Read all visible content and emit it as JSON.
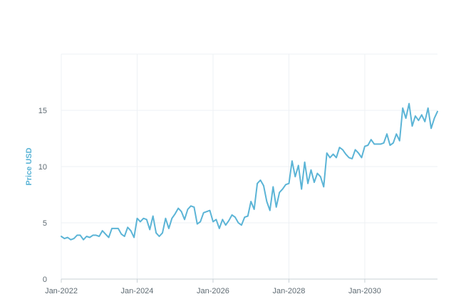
{
  "chart_data": {
    "type": "line",
    "title": "",
    "xlabel": "",
    "ylabel": "Price USD",
    "xlim": [
      "2022-01",
      "2031-12"
    ],
    "ylim": [
      0,
      20
    ],
    "grid": true,
    "colors": {
      "series": "#5bb4d6",
      "ylabel": "#5bb4d6",
      "grid": "#eef1f4",
      "axis": "#c8d0d6"
    },
    "x_ticks": [
      "Jan-2022",
      "Jan-2024",
      "Jan-2026",
      "Jan-2028",
      "Jan-2030"
    ],
    "y_ticks": [
      "0",
      "5",
      "10",
      "15"
    ],
    "series": [
      {
        "x": [
          "2022-01",
          "2022-02",
          "2022-03",
          "2022-04",
          "2022-05",
          "2022-06",
          "2022-07",
          "2022-08",
          "2022-09",
          "2022-10",
          "2022-11",
          "2022-12",
          "2023-01",
          "2023-02",
          "2023-03",
          "2023-04",
          "2023-05",
          "2023-06",
          "2023-07",
          "2023-08",
          "2023-09",
          "2023-10",
          "2023-11",
          "2023-12",
          "2024-01",
          "2024-02",
          "2024-03",
          "2024-04",
          "2024-05",
          "2024-06",
          "2024-07",
          "2024-08",
          "2024-09",
          "2024-10",
          "2024-11",
          "2024-12",
          "2025-01",
          "2025-02",
          "2025-03",
          "2025-04",
          "2025-05",
          "2025-06",
          "2025-07",
          "2025-08",
          "2025-09",
          "2025-10",
          "2025-11",
          "2025-12",
          "2026-01",
          "2026-02",
          "2026-03",
          "2026-04",
          "2026-05",
          "2026-06",
          "2026-07",
          "2026-08",
          "2026-09",
          "2026-10",
          "2026-11",
          "2026-12",
          "2027-01",
          "2027-02",
          "2027-03",
          "2027-04",
          "2027-05",
          "2027-06",
          "2027-07",
          "2027-08",
          "2027-09",
          "2027-10",
          "2027-11",
          "2027-12",
          "2028-01",
          "2028-02",
          "2028-03",
          "2028-04",
          "2028-05",
          "2028-06",
          "2028-07",
          "2028-08",
          "2028-09",
          "2028-10",
          "2028-11",
          "2028-12",
          "2029-01",
          "2029-02",
          "2029-03",
          "2029-04",
          "2029-05",
          "2029-06",
          "2029-07",
          "2029-08",
          "2029-09",
          "2029-10",
          "2029-11",
          "2029-12",
          "2030-01",
          "2030-02",
          "2030-03",
          "2030-04",
          "2030-05",
          "2030-06",
          "2030-07",
          "2030-08",
          "2030-09",
          "2030-10",
          "2030-11",
          "2030-12",
          "2031-01",
          "2031-02",
          "2031-03",
          "2031-04",
          "2031-05",
          "2031-06",
          "2031-07",
          "2031-08",
          "2031-09",
          "2031-10",
          "2031-11",
          "2031-12"
        ],
        "y": [
          3.8,
          3.6,
          3.7,
          3.5,
          3.6,
          3.9,
          3.9,
          3.5,
          3.8,
          3.7,
          3.9,
          3.9,
          3.8,
          4.3,
          4.0,
          3.7,
          4.5,
          4.5,
          4.5,
          4.0,
          3.8,
          4.6,
          4.3,
          3.7,
          5.4,
          5.1,
          5.4,
          5.3,
          4.4,
          5.6,
          4.1,
          3.8,
          4.1,
          5.4,
          4.5,
          5.4,
          5.8,
          6.3,
          6.0,
          5.3,
          6.2,
          6.5,
          6.4,
          4.9,
          5.1,
          5.9,
          6.0,
          6.1,
          5.1,
          5.3,
          4.5,
          5.3,
          4.8,
          5.2,
          5.7,
          5.5,
          5.0,
          4.8,
          5.5,
          5.6,
          6.9,
          6.2,
          8.5,
          8.8,
          8.3,
          6.9,
          6.1,
          8.2,
          6.4,
          7.7,
          8.0,
          8.4,
          8.5,
          10.5,
          9.1,
          10.1,
          8.0,
          10.4,
          8.5,
          9.7,
          8.6,
          9.4,
          9.1,
          8.2,
          11.2,
          10.8,
          11.1,
          10.8,
          11.7,
          11.5,
          11.1,
          10.8,
          10.7,
          11.5,
          11.2,
          10.8,
          11.8,
          11.9,
          12.4,
          12.0,
          12.0,
          12.0,
          12.1,
          12.9,
          11.9,
          12.1,
          12.9,
          12.3,
          15.2,
          14.3,
          15.6,
          13.6,
          14.5,
          14.1,
          14.6,
          14.0,
          15.2,
          13.4,
          14.3,
          14.9
        ]
      }
    ]
  }
}
